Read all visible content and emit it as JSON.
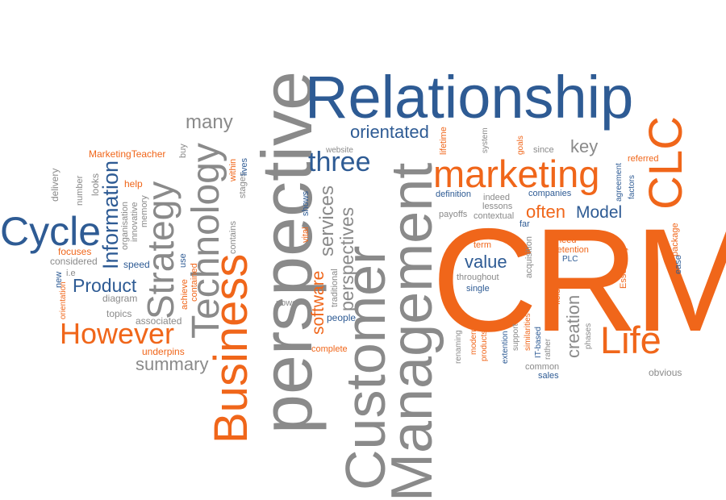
{
  "colors": {
    "blue": "#2e5b94",
    "orange": "#f0661a",
    "gray": "#8a8a8a",
    "light_gray": "#a3a3a3"
  },
  "words": {
    "crm": "CRM",
    "perspective": "perspective",
    "customer": "Customer",
    "management": "Management",
    "relationship": "Relationship",
    "business": "Business",
    "technology": "Technology",
    "strategy": "Strategy",
    "marketing": "marketing",
    "clc": "CLC",
    "cycle": "Cycle",
    "however": "However",
    "life": "Life",
    "three": "three",
    "information": "Information",
    "product": "Product",
    "many": "many",
    "summary": "summary",
    "services": "services",
    "perspectives": "perspectives",
    "software": "software",
    "orientated": "orientated",
    "key": "key",
    "often": "often",
    "model": "Model",
    "value": "value",
    "creation": "creation",
    "marketingteacher": "MarketingTeacher",
    "help": "help",
    "looks": "looks",
    "number": "number",
    "delivery": "delivery",
    "organisation": "organisation",
    "innovative": "innovative",
    "memory": "memory",
    "considered": "considered",
    "ie": "i.e",
    "new": "new",
    "orientation": "orientation",
    "focuses": "focuses",
    "speed": "speed",
    "diagram": "diagram",
    "topics": "topics",
    "associated": "associated",
    "underpins": "underpins",
    "buy": "buy",
    "within": "within",
    "stages": "stages",
    "lives": "lives",
    "contains": "contains",
    "contained": "contained",
    "use": "use",
    "achieve": "achieve",
    "website": "website",
    "shows": "shows",
    "vital": "vital",
    "power": "power",
    "traditional": "traditional",
    "people": "people",
    "complete": "complete",
    "lifetime": "lifetime",
    "system": "system",
    "goals": "goals",
    "since": "since",
    "referred": "referred",
    "agreement": "agreement",
    "factors": "factors",
    "definition": "definition",
    "lessons": "lessons",
    "indeed": "indeed",
    "companies": "companies",
    "payoffs": "payoffs",
    "contextual": "contextual",
    "far": "far",
    "term": "term",
    "need": "need",
    "retention": "retention",
    "plc": "PLC",
    "essentially": "Essentially",
    "package": "package",
    "ease": "ease",
    "throughout": "throughout",
    "single": "single",
    "acquisition": "acquisition",
    "field": "field",
    "similarities": "similarities",
    "renaming": "renaming",
    "modern": "modern",
    "products": "products",
    "extention": "extention",
    "support": "support",
    "itbased": "IT-based",
    "rather": "rather",
    "phases": "phases",
    "common": "common",
    "sales": "sales",
    "obvious": "obvious"
  }
}
